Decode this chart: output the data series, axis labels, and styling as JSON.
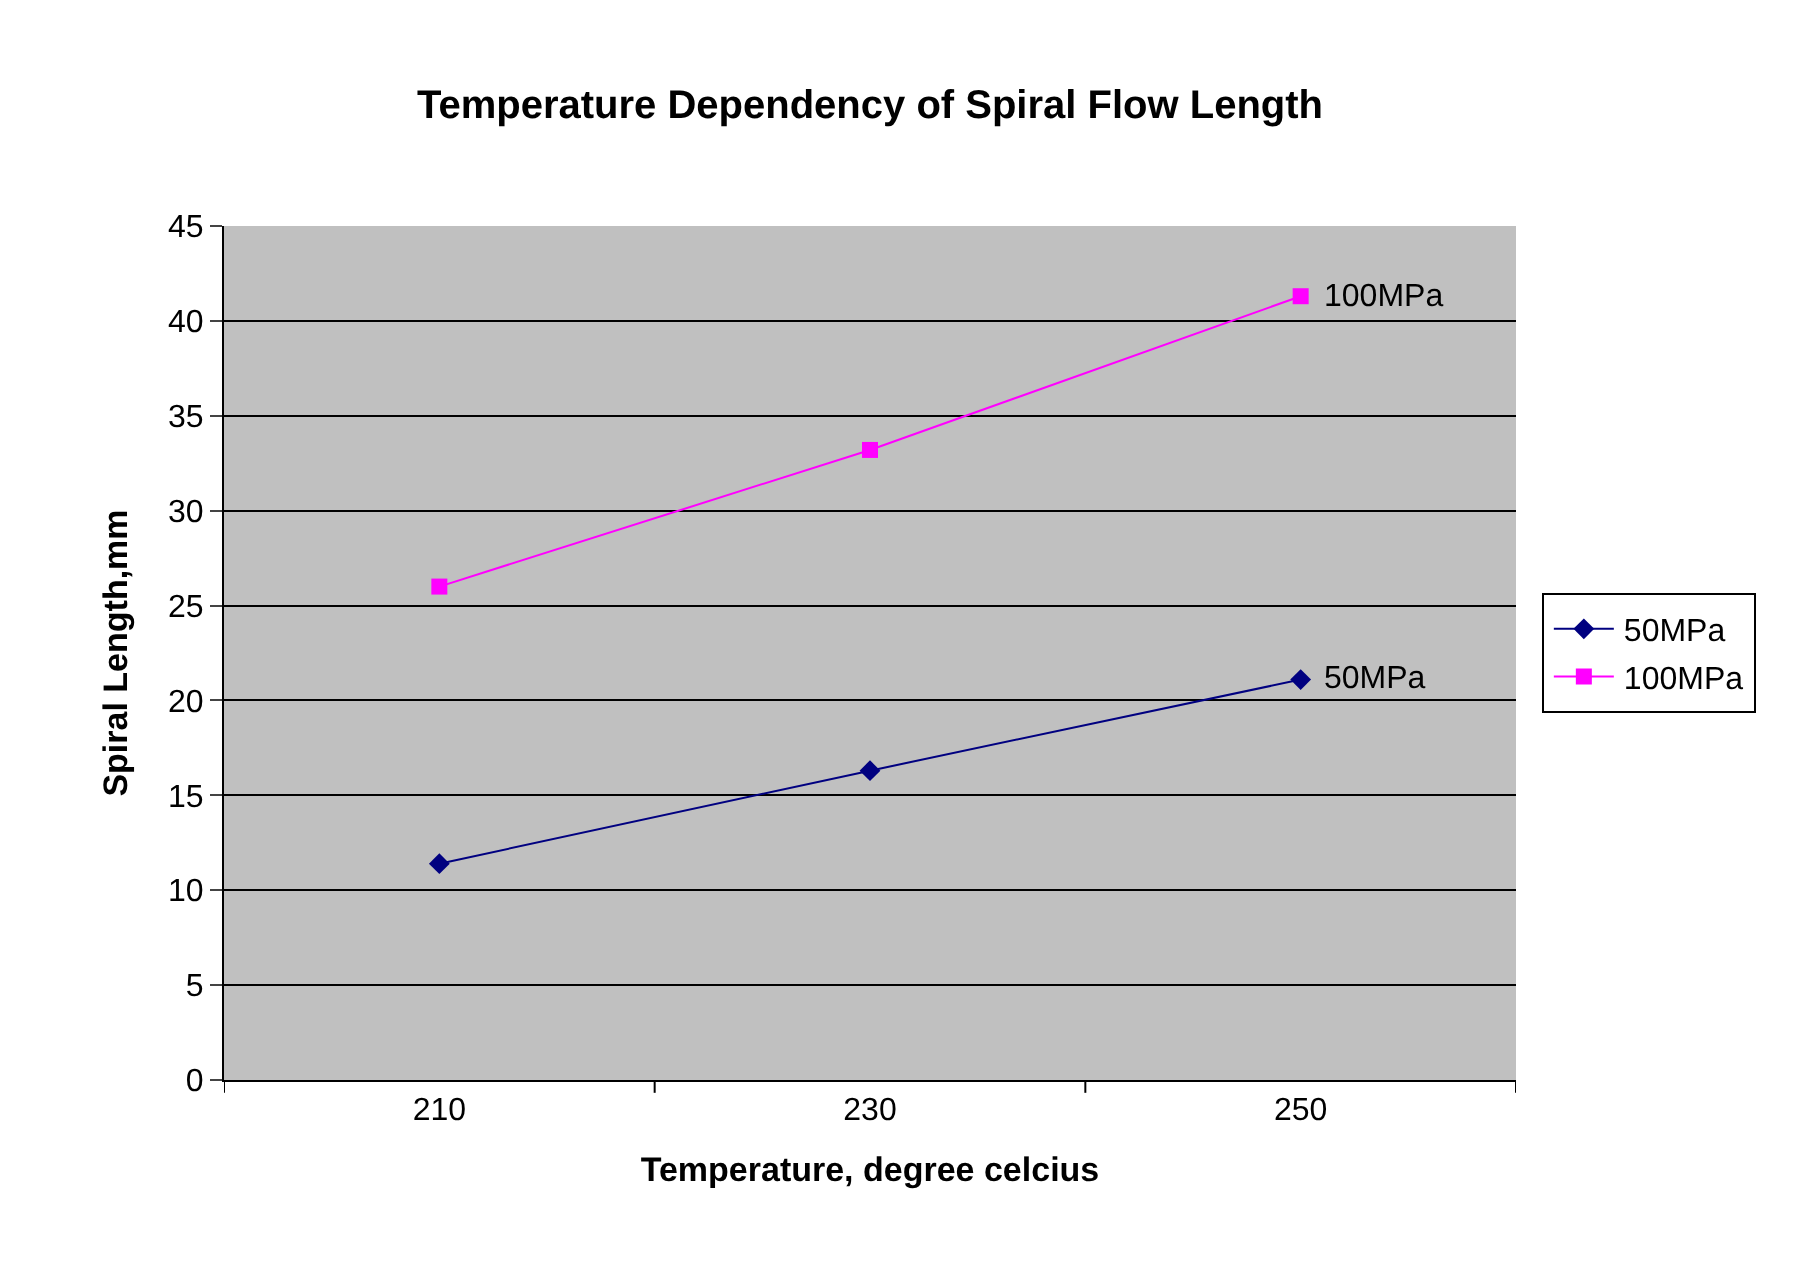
{
  "chart_data": {
    "type": "line",
    "title": "Temperature Dependency of Spiral Flow Length",
    "xlabel": "Temperature, degree celcius",
    "ylabel": "Spiral Length,mm",
    "categories": [
      "210",
      "230",
      "250"
    ],
    "series": [
      {
        "name": "50MPa",
        "color": "#000080",
        "values": [
          11.4,
          16.3,
          21.1
        ],
        "marker": "diamond"
      },
      {
        "name": "100MPa",
        "color": "#ff00ff",
        "values": [
          26.0,
          33.2,
          41.3
        ],
        "marker": "square"
      }
    ],
    "annotations": [
      {
        "text": "50MPa",
        "x": "250",
        "y": 21.1
      },
      {
        "text": "100MPa",
        "x": "250",
        "y": 41.3
      }
    ],
    "ylim": [
      0,
      45
    ],
    "yticks": [
      0,
      5,
      10,
      15,
      20,
      25,
      30,
      35,
      40,
      45
    ],
    "grid": "y",
    "legend": "right",
    "line_style": "solid"
  }
}
